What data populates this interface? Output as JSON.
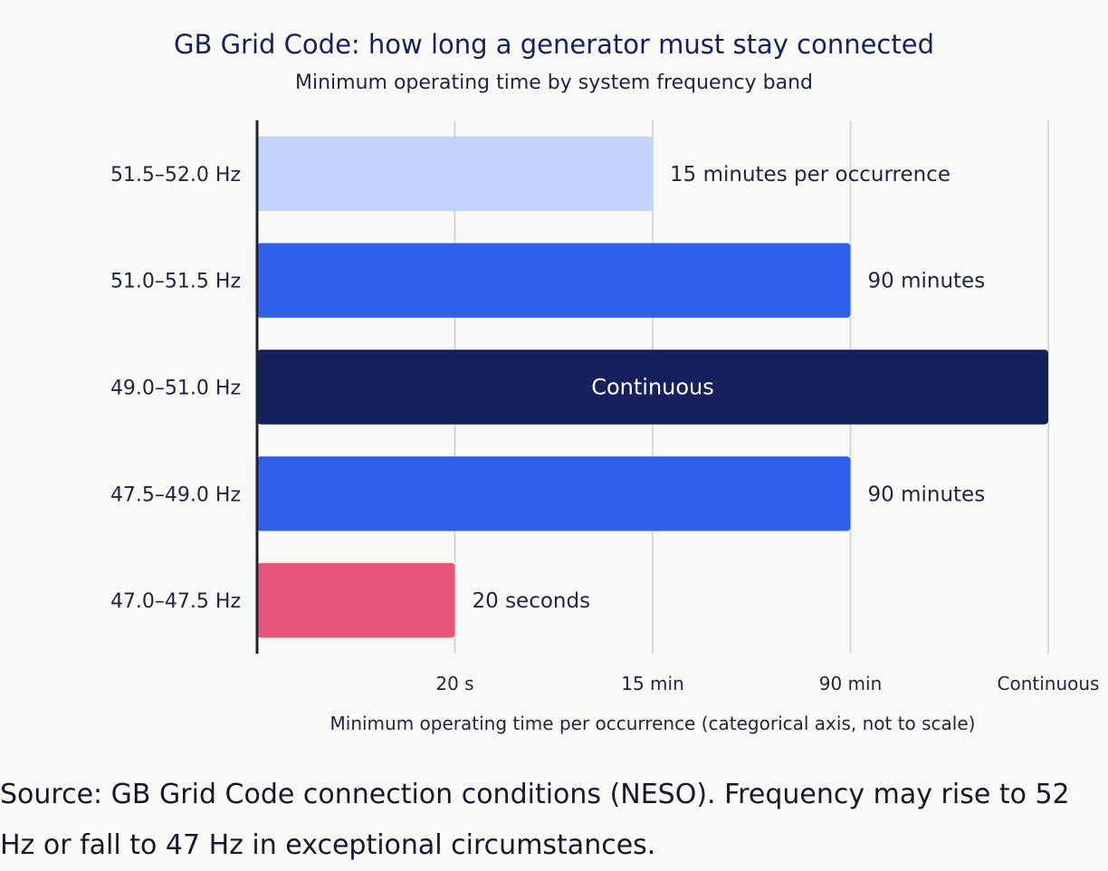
{
  "chart_data": {
    "type": "bar",
    "orientation": "horizontal",
    "title": "GB Grid Code: how long a generator must stay connected",
    "subtitle": "Minimum operating time by system frequency band",
    "xlabel": "Minimum operating time per occurrence (categorical axis, not to scale)",
    "ylabel": "",
    "x_ticks": [
      "20 s",
      "15 min",
      "90 min",
      "Continuous"
    ],
    "categories": [
      "51.5–52.0 Hz",
      "51.0–51.5 Hz",
      "49.0–51.0 Hz",
      "47.5–49.0 Hz",
      "47.0–47.5 Hz"
    ],
    "values": [
      2,
      3,
      4,
      3,
      1
    ],
    "labels": [
      "15 minutes per occurrence",
      "90 minutes",
      "Continuous",
      "90 minutes",
      "20 seconds"
    ],
    "colors": [
      "#c0d2fd",
      "#305fea",
      "#16205c",
      "#305fea",
      "#e9557a"
    ],
    "xlim": [
      0,
      4
    ],
    "grid": true,
    "legend": "none"
  },
  "source_note": "Source: GB Grid Code connection conditions (NESO). Frequency may rise to 52 Hz or fall to 47 Hz in exceptional circumstances."
}
